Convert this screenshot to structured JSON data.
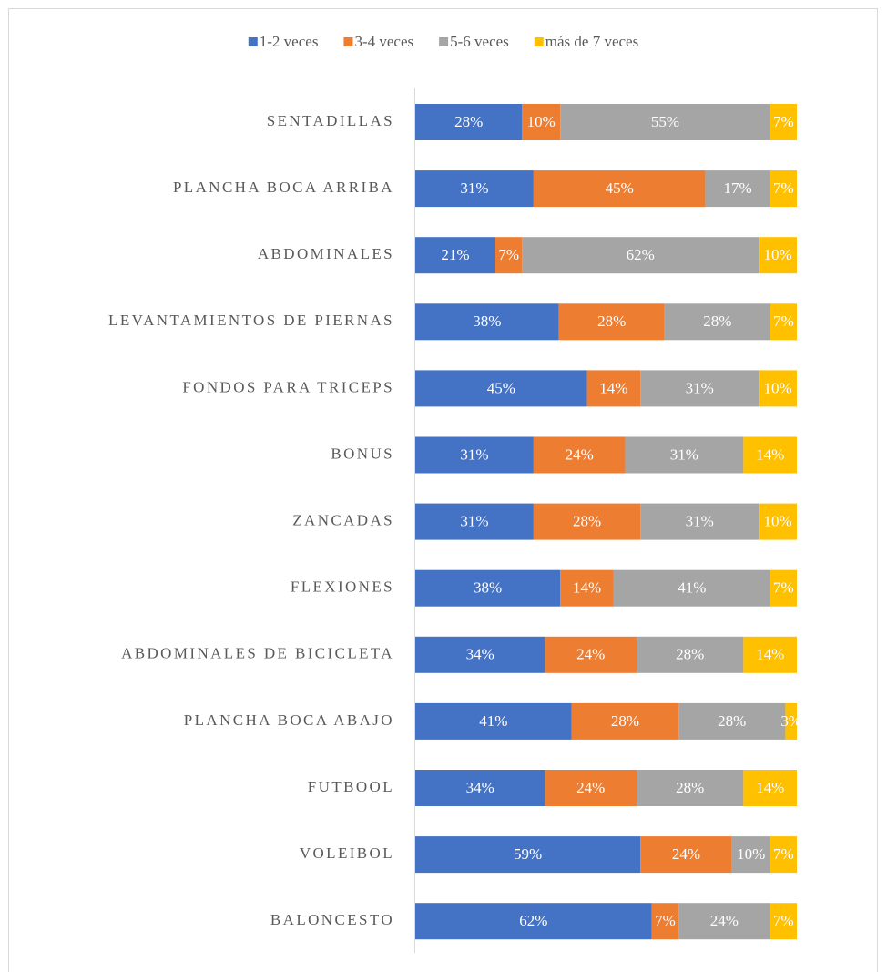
{
  "chart_data": {
    "type": "stacked-bar-100",
    "categories": [
      "SENTADILLAS",
      "PLANCHA BOCA ARRIBA",
      "ABDOMINALES",
      "LEVANTAMIENTOS DE PIERNAS",
      "FONDOS PARA TRICEPS",
      "BONUS",
      "ZANCADAS",
      "FLEXIONES",
      "ABDOMINALES DE BICICLETA",
      "PLANCHA BOCA ABAJO",
      "FUTBOOL",
      "VOLEIBOL",
      "BALONCESTO"
    ],
    "series": [
      {
        "name": "1-2 veces",
        "color": "#4472c4",
        "values": [
          28,
          31,
          21,
          38,
          45,
          31,
          31,
          38,
          34,
          41,
          34,
          59,
          62
        ],
        "value_labels": [
          "28%",
          "31%",
          "21%",
          "38%",
          "45%",
          "31%",
          "31%",
          "38%",
          "34%",
          "41%",
          "34%",
          "59%",
          "62%"
        ]
      },
      {
        "name": "3-4 veces",
        "color": "#ed7d31",
        "values": [
          10,
          45,
          7,
          28,
          14,
          24,
          28,
          14,
          24,
          28,
          24,
          24,
          7
        ],
        "value_labels": [
          "10%",
          "45%",
          "7%",
          "28%",
          "14%",
          "24%",
          "28%",
          "14%",
          "24%",
          "28%",
          "24%",
          "24%",
          "7%"
        ]
      },
      {
        "name": "5-6 veces",
        "color": "#a5a5a5",
        "values": [
          55,
          17,
          62,
          28,
          31,
          31,
          31,
          41,
          28,
          28,
          28,
          10,
          24
        ],
        "value_labels": [
          "55%",
          "17%",
          "62%",
          "28%",
          "31%",
          "31%",
          "31%",
          "41%",
          "28%",
          "28%",
          "28%",
          "10%",
          "24%"
        ]
      },
      {
        "name": "más de 7 veces",
        "color": "#ffc000",
        "values": [
          7,
          7,
          10,
          7,
          10,
          14,
          10,
          7,
          14,
          3,
          14,
          7,
          7
        ],
        "value_labels": [
          "7%",
          "7%",
          "10%",
          "7%",
          "10%",
          "14%",
          "10%",
          "7%",
          "14%",
          "3%",
          "14%",
          "7%",
          "7%"
        ]
      }
    ],
    "legend": "top"
  }
}
